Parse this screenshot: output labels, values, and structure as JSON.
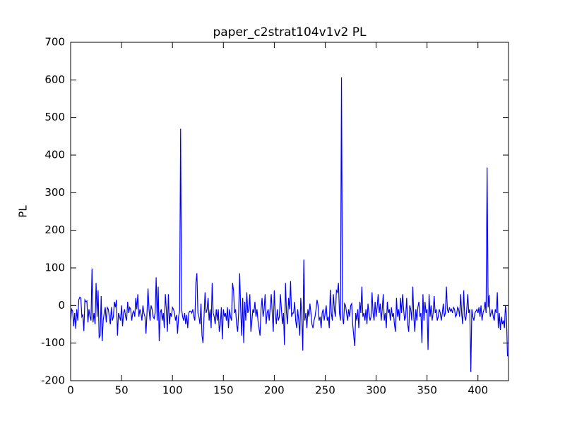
{
  "chart_data": {
    "type": "line",
    "title": "paper_c2strat104v1v2 PL",
    "y_label": "PL",
    "series": [
      {
        "name": "PL",
        "color": "#0000ff",
        "values": [
          -40,
          -10,
          -15,
          -55,
          -20,
          -62,
          -10,
          -40,
          15,
          22,
          20,
          -30,
          -25,
          -68,
          15,
          10,
          12,
          -45,
          -10,
          -30,
          -40,
          98,
          -45,
          -20,
          -50,
          60,
          -30,
          40,
          -85,
          -80,
          25,
          -95,
          -40,
          -20,
          -5,
          -45,
          -5,
          -10,
          -30,
          -50,
          -5,
          -40,
          -30,
          10,
          -5,
          15,
          -80,
          -20,
          -30,
          -40,
          0,
          -55,
          -20,
          -10,
          -30,
          -40,
          10,
          -20,
          -5,
          -10,
          -40,
          -20,
          -15,
          -30,
          20,
          -10,
          30,
          -30,
          -10,
          -20,
          -40,
          0,
          -20,
          -30,
          -75,
          -20,
          45,
          -10,
          -40,
          0,
          -10,
          -30,
          -35,
          -20,
          75,
          -40,
          50,
          -95,
          -20,
          -10,
          -40,
          -20,
          -60,
          30,
          -10,
          -70,
          30,
          -50,
          -20,
          -30,
          -5,
          -10,
          -20,
          -40,
          -25,
          -75,
          -30,
          -15,
          470,
          -10,
          -30,
          -40,
          -20,
          -50,
          -25,
          -60,
          -20,
          -15,
          -15,
          -20,
          -10,
          -30,
          -40,
          60,
          86,
          -20,
          -30,
          -50,
          5,
          -80,
          -100,
          -30,
          35,
          -20,
          -10,
          20,
          -40,
          -10,
          -60,
          60,
          -20,
          -30,
          -50,
          -10,
          -40,
          -10,
          -70,
          -50,
          -5,
          -90,
          -10,
          -30,
          -20,
          -40,
          -5,
          -60,
          -10,
          -30,
          -40,
          60,
          40,
          -20,
          -10,
          -50,
          -70,
          -20,
          86,
          -10,
          -80,
          20,
          -100,
          10,
          -40,
          35,
          -20,
          -10,
          30,
          -70,
          -40,
          -10,
          -20,
          10,
          -30,
          -10,
          -40,
          -60,
          -80,
          -10,
          20,
          -30,
          -10,
          30,
          -50,
          -20,
          -10,
          -40,
          -5,
          30,
          -20,
          -70,
          40,
          -20,
          -50,
          -10,
          -40,
          -30,
          30,
          -10,
          -50,
          -20,
          -105,
          60,
          -20,
          -50,
          20,
          -10,
          65,
          -30,
          -20,
          -20,
          10,
          -40,
          -60,
          -10,
          -40,
          -80,
          20,
          -30,
          -120,
          122,
          -40,
          -20,
          -60,
          -10,
          -30,
          5,
          -20,
          -50,
          -60,
          -40,
          -30,
          -10,
          15,
          0,
          -40,
          -30,
          -60,
          -20,
          -10,
          -40,
          -20,
          0,
          -40,
          -30,
          -60,
          42,
          -20,
          -40,
          30,
          -10,
          -30,
          40,
          35,
          60,
          -20,
          -40,
          607,
          -30,
          -50,
          5,
          0,
          -20,
          -40,
          -10,
          -30,
          0,
          5,
          -50,
          -80,
          -108,
          -20,
          -40,
          -10,
          -60,
          10,
          -20,
          50,
          -30,
          -20,
          -40,
          -10,
          -50,
          5,
          -20,
          -40,
          -30,
          35,
          -20,
          -40,
          10,
          -30,
          -5,
          30,
          -20,
          5,
          -40,
          -10,
          30,
          -40,
          -20,
          -60,
          10,
          -20,
          -10,
          -40,
          -5,
          -30,
          -20,
          -50,
          -70,
          20,
          -30,
          -10,
          -40,
          20,
          -20,
          30,
          -10,
          -40,
          -30,
          20,
          -50,
          -70,
          0,
          -10,
          -40,
          50,
          -30,
          -70,
          -10,
          -40,
          -5,
          10,
          -30,
          -20,
          -100,
          30,
          -40,
          10,
          -20,
          -10,
          -118,
          30,
          -30,
          0,
          -40,
          -20,
          25,
          -20,
          -10,
          -40,
          -30,
          -10,
          -20,
          -40,
          -20,
          5,
          -30,
          -20,
          50,
          -10,
          -20,
          -5,
          -15,
          -10,
          -20,
          -5,
          -10,
          -30,
          -25,
          -5,
          -10,
          -30,
          30,
          -20,
          -50,
          40,
          -30,
          -40,
          -10,
          30,
          -20,
          -10,
          -177,
          -10,
          -30,
          -40,
          -20,
          -15,
          -10,
          -20,
          -5,
          -30,
          0,
          -40,
          -20,
          -10,
          10,
          -20,
          367,
          -5,
          28,
          -30,
          -20,
          -10,
          -30,
          -40,
          -10,
          -20,
          35,
          -60,
          -20,
          -65,
          -30,
          -50,
          -40,
          -60,
          0,
          -30,
          -135
        ]
      }
    ],
    "xlim": [
      0,
      430
    ],
    "xticks": [
      0,
      50,
      100,
      150,
      200,
      250,
      300,
      350,
      400
    ],
    "ylim": [
      -200,
      700
    ],
    "yticks": [
      -200,
      -100,
      0,
      100,
      200,
      300,
      400,
      500,
      600,
      700
    ]
  }
}
